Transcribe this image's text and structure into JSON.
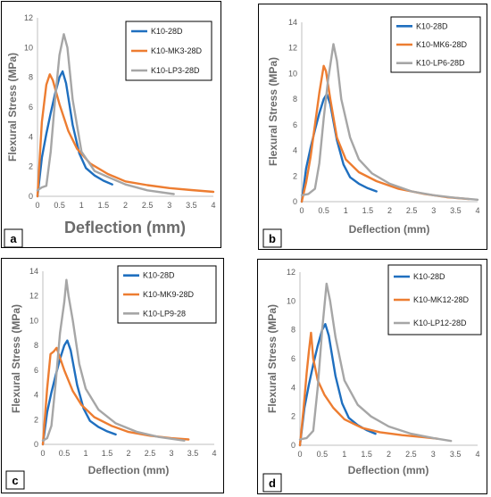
{
  "charts": [
    {
      "label": "a",
      "type": "line",
      "xlabel": "Deflection (mm)",
      "ylabel": "Flexural Stress (MPa)",
      "xlim": [
        0,
        4
      ],
      "xticks": [
        0,
        0.5,
        1,
        1.5,
        2,
        2.5,
        3,
        3.5,
        4
      ],
      "ylim": [
        0,
        12
      ],
      "yticks": [
        0,
        2,
        4,
        6,
        8,
        10,
        12
      ],
      "legend_position": "top-right",
      "series": [
        {
          "name": "K10-28D",
          "color": "#1f6fbf",
          "points": [
            [
              0,
              0
            ],
            [
              0.1,
              2.6
            ],
            [
              0.2,
              4.2
            ],
            [
              0.3,
              5.6
            ],
            [
              0.4,
              6.9
            ],
            [
              0.5,
              8.0
            ],
            [
              0.57,
              8.4
            ],
            [
              0.65,
              7.6
            ],
            [
              0.8,
              4.8
            ],
            [
              0.95,
              2.9
            ],
            [
              1.1,
              1.9
            ],
            [
              1.3,
              1.4
            ],
            [
              1.5,
              1.05
            ],
            [
              1.7,
              0.8
            ]
          ]
        },
        {
          "name": "K10-MK3-28D",
          "color": "#ed7d31",
          "points": [
            [
              0,
              0
            ],
            [
              0.1,
              5.0
            ],
            [
              0.2,
              7.5
            ],
            [
              0.28,
              8.2
            ],
            [
              0.35,
              7.8
            ],
            [
              0.5,
              6.2
            ],
            [
              0.7,
              4.4
            ],
            [
              0.9,
              3.2
            ],
            [
              1.2,
              2.2
            ],
            [
              1.6,
              1.5
            ],
            [
              2.0,
              1.0
            ],
            [
              2.5,
              0.75
            ],
            [
              3.0,
              0.55
            ],
            [
              3.5,
              0.42
            ],
            [
              4.0,
              0.3
            ]
          ]
        },
        {
          "name": "K10-LP3-28D",
          "color": "#a6a6a6",
          "points": [
            [
              0,
              0.4
            ],
            [
              0.1,
              0.6
            ],
            [
              0.2,
              0.7
            ],
            [
              0.3,
              3.0
            ],
            [
              0.4,
              6.5
            ],
            [
              0.5,
              9.5
            ],
            [
              0.6,
              10.9
            ],
            [
              0.68,
              10.0
            ],
            [
              0.8,
              6.5
            ],
            [
              1.0,
              3.0
            ],
            [
              1.3,
              1.7
            ],
            [
              1.6,
              1.3
            ],
            [
              2.0,
              0.8
            ],
            [
              2.5,
              0.4
            ],
            [
              3.1,
              0.15
            ]
          ]
        }
      ]
    },
    {
      "label": "b",
      "type": "line",
      "xlabel": "Deflection (mm)",
      "ylabel": "Flexural Stress (MPa)",
      "xlim": [
        0,
        4
      ],
      "xticks": [
        0,
        0.5,
        1,
        1.5,
        2,
        2.5,
        3,
        3.5,
        4
      ],
      "ylim": [
        0,
        14
      ],
      "yticks": [
        0,
        2,
        4,
        6,
        8,
        10,
        12,
        14
      ],
      "legend_position": "top-right",
      "series": [
        {
          "name": "K10-28D",
          "color": "#1f6fbf",
          "points": [
            [
              0,
              0
            ],
            [
              0.1,
              2.6
            ],
            [
              0.2,
              4.2
            ],
            [
              0.3,
              5.6
            ],
            [
              0.4,
              6.9
            ],
            [
              0.5,
              8.0
            ],
            [
              0.57,
              8.4
            ],
            [
              0.65,
              7.6
            ],
            [
              0.8,
              4.8
            ],
            [
              0.95,
              2.9
            ],
            [
              1.1,
              1.9
            ],
            [
              1.3,
              1.4
            ],
            [
              1.5,
              1.05
            ],
            [
              1.7,
              0.8
            ]
          ]
        },
        {
          "name": "K10-MK6-28D",
          "color": "#ed7d31",
          "points": [
            [
              0,
              0
            ],
            [
              0.1,
              1.5
            ],
            [
              0.2,
              3.5
            ],
            [
              0.3,
              6.0
            ],
            [
              0.4,
              8.5
            ],
            [
              0.5,
              10.6
            ],
            [
              0.55,
              10.2
            ],
            [
              0.65,
              8.0
            ],
            [
              0.8,
              5.0
            ],
            [
              1.0,
              3.3
            ],
            [
              1.3,
              2.3
            ],
            [
              1.7,
              1.6
            ],
            [
              2.2,
              1.0
            ],
            [
              2.8,
              0.6
            ],
            [
              3.3,
              0.35
            ],
            [
              3.8,
              0.2
            ]
          ]
        },
        {
          "name": "K10-LP6-28D",
          "color": "#a6a6a6",
          "points": [
            [
              0,
              0.5
            ],
            [
              0.15,
              0.6
            ],
            [
              0.3,
              1.0
            ],
            [
              0.4,
              3.0
            ],
            [
              0.5,
              6.5
            ],
            [
              0.6,
              9.5
            ],
            [
              0.72,
              12.3
            ],
            [
              0.8,
              11.0
            ],
            [
              0.9,
              8.0
            ],
            [
              1.1,
              5.0
            ],
            [
              1.3,
              3.3
            ],
            [
              1.6,
              2.2
            ],
            [
              2.0,
              1.4
            ],
            [
              2.5,
              0.8
            ],
            [
              3.0,
              0.5
            ],
            [
              3.5,
              0.3
            ],
            [
              4.0,
              0.15
            ]
          ]
        }
      ]
    },
    {
      "label": "c",
      "type": "line",
      "xlabel": "Deflection (mm)",
      "ylabel": "Flexural Stress (MPa)",
      "xlim": [
        0,
        4
      ],
      "xticks": [
        0,
        0.5,
        1,
        1.5,
        2,
        2.5,
        3,
        3.5,
        4
      ],
      "ylim": [
        0,
        14
      ],
      "yticks": [
        0,
        2,
        4,
        6,
        8,
        10,
        12,
        14
      ],
      "legend_position": "top-right",
      "series": [
        {
          "name": "K10-28D",
          "color": "#1f6fbf",
          "points": [
            [
              0,
              0
            ],
            [
              0.1,
              2.6
            ],
            [
              0.2,
              4.2
            ],
            [
              0.3,
              5.6
            ],
            [
              0.4,
              6.9
            ],
            [
              0.5,
              8.0
            ],
            [
              0.57,
              8.4
            ],
            [
              0.65,
              7.6
            ],
            [
              0.8,
              4.8
            ],
            [
              0.95,
              2.9
            ],
            [
              1.1,
              1.9
            ],
            [
              1.3,
              1.4
            ],
            [
              1.5,
              1.05
            ],
            [
              1.7,
              0.8
            ]
          ]
        },
        {
          "name": "K10-MK9-28D",
          "color": "#ed7d31",
          "points": [
            [
              0,
              0
            ],
            [
              0.1,
              4.5
            ],
            [
              0.18,
              7.3
            ],
            [
              0.25,
              7.5
            ],
            [
              0.32,
              7.8
            ],
            [
              0.4,
              7.0
            ],
            [
              0.5,
              6.0
            ],
            [
              0.7,
              4.3
            ],
            [
              0.9,
              3.2
            ],
            [
              1.2,
              2.2
            ],
            [
              1.6,
              1.5
            ],
            [
              2.0,
              1.0
            ],
            [
              2.5,
              0.7
            ],
            [
              3.0,
              0.5
            ],
            [
              3.4,
              0.4
            ]
          ]
        },
        {
          "name": "K10-LP9-28",
          "color": "#a6a6a6",
          "points": [
            [
              0,
              0.3
            ],
            [
              0.1,
              0.5
            ],
            [
              0.2,
              1.5
            ],
            [
              0.3,
              5.0
            ],
            [
              0.4,
              9.0
            ],
            [
              0.5,
              11.5
            ],
            [
              0.55,
              13.3
            ],
            [
              0.6,
              12.0
            ],
            [
              0.7,
              10.0
            ],
            [
              0.85,
              6.5
            ],
            [
              1.0,
              4.5
            ],
            [
              1.3,
              2.8
            ],
            [
              1.7,
              1.7
            ],
            [
              2.2,
              1.0
            ],
            [
              2.7,
              0.6
            ],
            [
              3.3,
              0.3
            ]
          ]
        }
      ]
    },
    {
      "label": "d",
      "type": "line",
      "xlabel": "Deflection (mm)",
      "ylabel": "Flexural Stress (MPa)",
      "xlim": [
        0,
        4
      ],
      "xticks": [
        0,
        0.5,
        1,
        1.5,
        2,
        2.5,
        3,
        3.5,
        4
      ],
      "ylim": [
        0,
        12
      ],
      "yticks": [
        0,
        2,
        4,
        6,
        8,
        10,
        12
      ],
      "legend_position": "top-right",
      "series": [
        {
          "name": "K10-28D",
          "color": "#1f6fbf",
          "points": [
            [
              0,
              0
            ],
            [
              0.1,
              2.6
            ],
            [
              0.2,
              4.2
            ],
            [
              0.3,
              5.6
            ],
            [
              0.4,
              6.9
            ],
            [
              0.5,
              8.0
            ],
            [
              0.57,
              8.4
            ],
            [
              0.65,
              7.6
            ],
            [
              0.8,
              4.8
            ],
            [
              0.95,
              2.9
            ],
            [
              1.1,
              1.9
            ],
            [
              1.3,
              1.4
            ],
            [
              1.5,
              1.05
            ],
            [
              1.7,
              0.8
            ]
          ]
        },
        {
          "name": "K10-MK12-28D",
          "color": "#ed7d31",
          "points": [
            [
              0,
              0
            ],
            [
              0.08,
              2.5
            ],
            [
              0.15,
              5.0
            ],
            [
              0.2,
              6.5
            ],
            [
              0.25,
              7.8
            ],
            [
              0.3,
              6.0
            ],
            [
              0.4,
              4.5
            ],
            [
              0.55,
              3.5
            ],
            [
              0.75,
              2.6
            ],
            [
              1.0,
              1.8
            ],
            [
              1.4,
              1.2
            ],
            [
              1.8,
              0.9
            ],
            [
              2.3,
              0.7
            ],
            [
              2.8,
              0.55
            ],
            [
              3.1,
              0.45
            ]
          ]
        },
        {
          "name": "K10-LP12-28D",
          "color": "#a6a6a6",
          "points": [
            [
              0,
              0.4
            ],
            [
              0.15,
              0.5
            ],
            [
              0.3,
              1.0
            ],
            [
              0.4,
              4.0
            ],
            [
              0.5,
              8.0
            ],
            [
              0.6,
              11.2
            ],
            [
              0.68,
              10.0
            ],
            [
              0.8,
              7.5
            ],
            [
              1.0,
              4.5
            ],
            [
              1.3,
              2.8
            ],
            [
              1.6,
              2.0
            ],
            [
              2.0,
              1.3
            ],
            [
              2.5,
              0.8
            ],
            [
              3.0,
              0.5
            ],
            [
              3.4,
              0.3
            ]
          ]
        }
      ]
    }
  ]
}
